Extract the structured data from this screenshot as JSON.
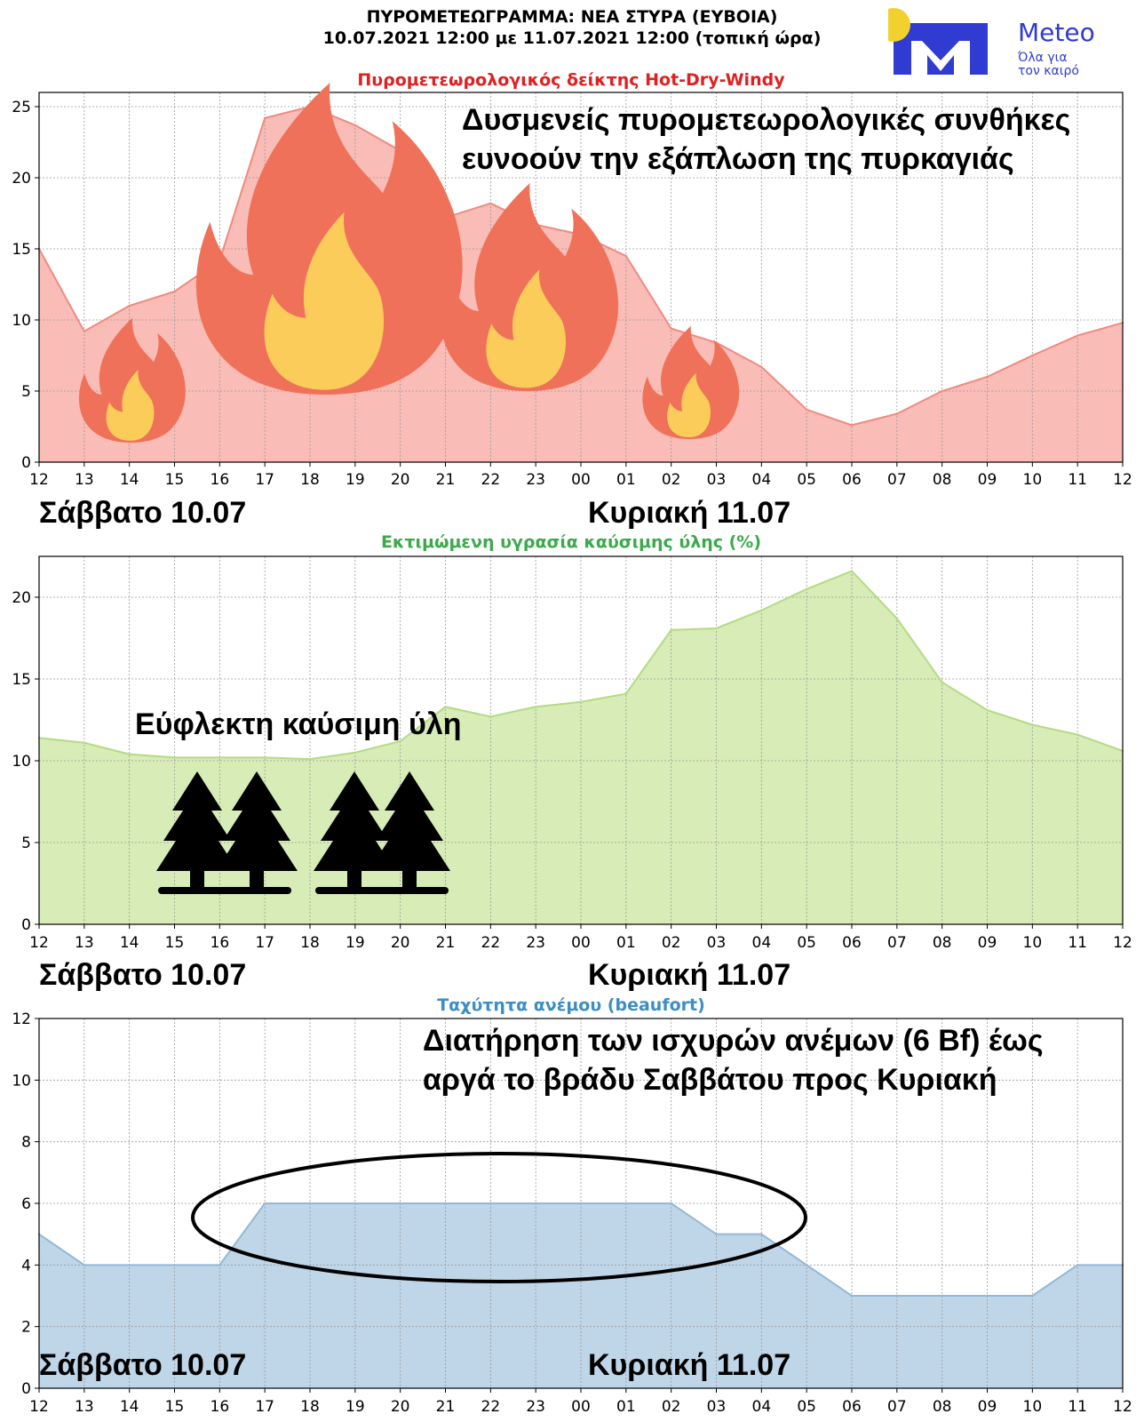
{
  "header": {
    "title_line1": "ΠΥΡΟΜΕΤΕΩΓΡΑΜΜΑ: ΝΕΑ ΣΤΥΡΑ (ΕΥΒΟΙΑ)",
    "title_line2": "10.07.2021 12:00 με 11.07.2021 12:00 (τοπική ώρα)"
  },
  "logo": {
    "name": "Meteo",
    "tagline_line1": "Όλα για",
    "tagline_line2": "τον καιρό",
    "sun_color": "#f2d12e",
    "brand_color": "#2f3bd1"
  },
  "days": {
    "saturday": "Σάββατο 10.07",
    "sunday": "Κυριακή 11.07"
  },
  "chart_data": [
    {
      "type": "area",
      "title": "Πυρομετεωρολογικός δείκτης Hot-Dry-Windy",
      "title_color": "#e02020",
      "fill": "#f9bcb6",
      "stroke": "#f08a80",
      "x": [
        "12",
        "13",
        "14",
        "15",
        "16",
        "17",
        "18",
        "19",
        "20",
        "21",
        "22",
        "23",
        "00",
        "01",
        "02",
        "03",
        "04",
        "05",
        "06",
        "07",
        "08",
        "09",
        "10",
        "11",
        "12"
      ],
      "values": [
        15,
        9.2,
        11,
        12,
        14.2,
        24.2,
        25,
        23.7,
        21.9,
        17.2,
        18.2,
        16.7,
        16,
        14.5,
        9.4,
        8.4,
        6.7,
        3.7,
        2.6,
        3.4,
        5,
        6,
        7.5,
        8.9,
        9.8
      ],
      "ylim": [
        0,
        26
      ],
      "yticks": [
        0,
        5,
        10,
        15,
        20,
        25
      ],
      "grid": true,
      "annotation": [
        "Δυσμενείς πυρομετεωρολογικές συνθήκες",
        "ευνοούν την εξάπλωση της πυρκαγιάς"
      ],
      "icons": [
        "fire-icon",
        "fire-icon",
        "fire-icon",
        "fire-icon"
      ]
    },
    {
      "type": "area",
      "title": "Εκτιμώμενη υγρασία καύσιμης ύλης (%)",
      "title_color": "#3caa4c",
      "fill": "#d7ecb6",
      "stroke": "#b4db84",
      "x": [
        "12",
        "13",
        "14",
        "15",
        "16",
        "17",
        "18",
        "19",
        "20",
        "21",
        "22",
        "23",
        "00",
        "01",
        "02",
        "03",
        "04",
        "05",
        "06",
        "07",
        "08",
        "09",
        "10",
        "11",
        "12"
      ],
      "values": [
        11.4,
        11.1,
        10.4,
        10.2,
        10.2,
        10.2,
        10.1,
        10.5,
        11.2,
        13.3,
        12.7,
        13.3,
        13.6,
        14.1,
        18,
        18.1,
        19.2,
        20.5,
        21.6,
        18.7,
        14.8,
        13.1,
        12.2,
        11.6,
        10.6
      ],
      "ylim": [
        0,
        22.5
      ],
      "yticks": [
        0,
        5,
        10,
        15,
        20
      ],
      "grid": true,
      "annotation": [
        "Εύφλεκτη καύσιμη ύλη"
      ],
      "icons": [
        "trees-icon",
        "trees-icon"
      ]
    },
    {
      "type": "area",
      "title": "Ταχύτητα ανέμου (beaufort)",
      "title_color": "#3d8ec2",
      "fill": "#bfd5e8",
      "stroke": "#93b9d6",
      "x": [
        "12",
        "13",
        "14",
        "15",
        "16",
        "17",
        "18",
        "19",
        "20",
        "21",
        "22",
        "23",
        "00",
        "01",
        "02",
        "03",
        "04",
        "05",
        "06",
        "07",
        "08",
        "09",
        "10",
        "11",
        "12"
      ],
      "values": [
        5,
        4,
        4,
        4,
        4,
        6,
        6,
        6,
        6,
        6,
        6,
        6,
        6,
        6,
        6,
        5,
        5,
        4,
        3,
        3,
        3,
        3,
        3,
        4,
        4
      ],
      "ylim": [
        0,
        12
      ],
      "yticks": [
        0,
        2,
        4,
        6,
        8,
        10,
        12
      ],
      "grid": true,
      "annotation": [
        "Διατήρηση των ισχυρών ανέμων (6 Bf) έως",
        "αργά το βράδυ Σαββάτου προς Κυριακή"
      ]
    }
  ]
}
